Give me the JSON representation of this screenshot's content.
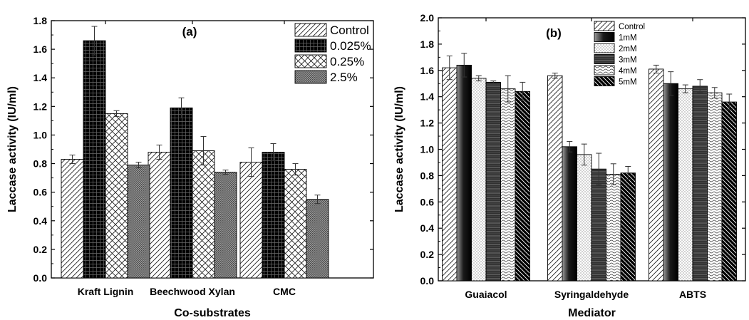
{
  "chart_data": [
    {
      "type": "bar",
      "panel_label": "(a)",
      "xlabel": "Co-substrates",
      "ylabel": "Laccase activity (IU/ml)",
      "ylim": [
        0.0,
        1.8
      ],
      "yticks": [
        "0.0",
        "0.2",
        "0.4",
        "0.6",
        "0.8",
        "1.0",
        "1.2",
        "1.4",
        "1.6",
        "1.8"
      ],
      "categories": [
        "Kraft Lignin",
        "Beechwood Xylan",
        "CMC"
      ],
      "grid": false,
      "legend_position": "top-right",
      "series": [
        {
          "name": "Control",
          "pattern": "diagonal-hatch",
          "values": [
            0.83,
            0.88,
            0.81
          ],
          "errors": [
            0.03,
            0.05,
            0.1
          ]
        },
        {
          "name": "0.025%",
          "pattern": "black-grid",
          "values": [
            1.66,
            1.19,
            0.88
          ],
          "errors": [
            0.1,
            0.07,
            0.06
          ]
        },
        {
          "name": "0.25%",
          "pattern": "crosshatch",
          "values": [
            1.15,
            0.89,
            0.76
          ],
          "errors": [
            0.02,
            0.1,
            0.04
          ]
        },
        {
          "name": "2.5%",
          "pattern": "dense-gray-dots",
          "values": [
            0.79,
            0.74,
            0.55
          ],
          "errors": [
            0.02,
            0.015,
            0.03
          ]
        }
      ]
    },
    {
      "type": "bar",
      "panel_label": "(b)",
      "xlabel": "Mediator",
      "ylabel": "Laccase activity (IU/ml)",
      "ylim": [
        0.0,
        2.0
      ],
      "yticks": [
        "0.0",
        "0.2",
        "0.4",
        "0.6",
        "0.8",
        "1.0",
        "1.2",
        "1.4",
        "1.6",
        "1.8",
        "2.0"
      ],
      "categories": [
        "Guaiacol",
        "Syringaldehyde",
        "ABTS"
      ],
      "grid": false,
      "legend_position": "top-center",
      "series": [
        {
          "name": "Control",
          "pattern": "diagonal-hatch",
          "values": [
            1.62,
            1.56,
            1.61
          ],
          "errors": [
            0.09,
            0.02,
            0.03
          ]
        },
        {
          "name": "1mM",
          "pattern": "dark-gradient",
          "values": [
            1.64,
            1.02,
            1.5
          ],
          "errors": [
            0.09,
            0.04,
            0.09
          ]
        },
        {
          "name": "2mM",
          "pattern": "light-dots",
          "values": [
            1.54,
            0.96,
            1.46
          ],
          "errors": [
            0.02,
            0.08,
            0.03
          ]
        },
        {
          "name": "3mM",
          "pattern": "dark-horizontal-bands",
          "values": [
            1.51,
            0.85,
            1.48
          ],
          "errors": [
            0.01,
            0.12,
            0.05
          ]
        },
        {
          "name": "4mM",
          "pattern": "wavy-lines",
          "values": [
            1.46,
            0.81,
            1.43
          ],
          "errors": [
            0.1,
            0.08,
            0.04
          ]
        },
        {
          "name": "5mM",
          "pattern": "black-backslash",
          "values": [
            1.44,
            0.82,
            1.36
          ],
          "errors": [
            0.07,
            0.05,
            0.06
          ]
        }
      ]
    }
  ]
}
